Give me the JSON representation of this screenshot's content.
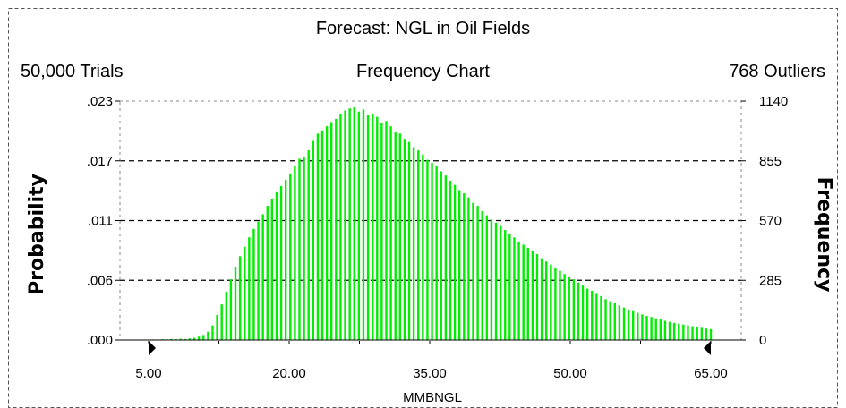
{
  "forecast_title": "Forecast: NGL in Oil Fields",
  "trials_label": "50,000 Trials",
  "outliers_label": "768 Outliers",
  "chart_data": {
    "type": "bar",
    "title": "Frequency Chart",
    "xlabel": "MMBNGL",
    "ylabel": "Probability",
    "y2label": "Frequency",
    "x_ticks": [
      "5.00",
      "20.00",
      "35.00",
      "50.00",
      "65.00"
    ],
    "x_tick_values": [
      5,
      20,
      35,
      50,
      65
    ],
    "xlim": [
      5,
      65
    ],
    "y_ticks": [
      ".000",
      ".006",
      ".011",
      ".017",
      ".023"
    ],
    "y2_ticks": [
      "0",
      "285",
      "570",
      "855",
      "1140"
    ],
    "y2lim": [
      0,
      1140
    ],
    "grid": "dashed-horizontal",
    "bar_color": "#00ee00",
    "frequencies": [
      2,
      3,
      3,
      4,
      3,
      5,
      4,
      6,
      5,
      8,
      10,
      16,
      24,
      40,
      70,
      120,
      170,
      230,
      290,
      350,
      400,
      445,
      490,
      530,
      565,
      600,
      640,
      675,
      705,
      735,
      765,
      795,
      830,
      865,
      875,
      905,
      950,
      985,
      1000,
      1020,
      1040,
      1055,
      1080,
      1095,
      1105,
      1110,
      1090,
      1100,
      1075,
      1080,
      1065,
      1035,
      1045,
      1020,
      990,
      985,
      960,
      945,
      920,
      905,
      885,
      860,
      845,
      830,
      805,
      785,
      760,
      740,
      715,
      700,
      680,
      655,
      640,
      615,
      595,
      575,
      560,
      545,
      525,
      505,
      490,
      470,
      455,
      440,
      425,
      410,
      390,
      375,
      360,
      345,
      330,
      315,
      300,
      290,
      275,
      260,
      245,
      235,
      220,
      210,
      195,
      185,
      175,
      165,
      155,
      145,
      138,
      130,
      122,
      115,
      110,
      104,
      98,
      92,
      87,
      82,
      78,
      74,
      70,
      66,
      62,
      58,
      55,
      52
    ]
  }
}
